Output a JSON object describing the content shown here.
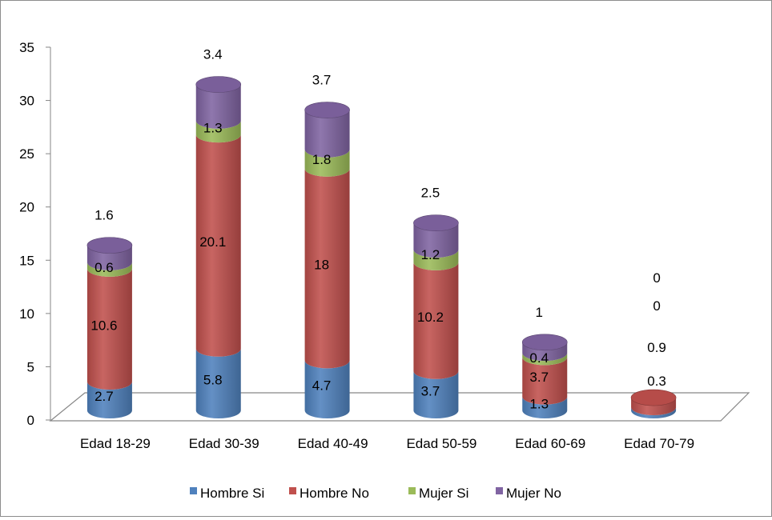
{
  "chart_data": {
    "type": "bar",
    "subtype": "stacked-3d-cylinder",
    "categories": [
      "Edad 18-29",
      "Edad 30-39",
      "Edad 40-49",
      "Edad 50-59",
      "Edad 60-69",
      "Edad 70-79"
    ],
    "series": [
      {
        "name": "Hombre Si",
        "color": "#4F81BD",
        "values": [
          2.7,
          5.8,
          4.7,
          3.7,
          1.3,
          0.3
        ]
      },
      {
        "name": "Hombre No",
        "color": "#C0504D",
        "values": [
          10.6,
          20.1,
          18,
          10.2,
          3.7,
          0.9
        ]
      },
      {
        "name": "Mujer Si",
        "color": "#9BBB59",
        "values": [
          0.6,
          1.3,
          1.8,
          1.2,
          0.4,
          0
        ]
      },
      {
        "name": "Mujer No",
        "color": "#8064A2",
        "values": [
          1.6,
          3.4,
          3.7,
          2.5,
          1,
          0
        ]
      }
    ],
    "ylim": [
      0,
      35
    ],
    "yticks": [
      "0",
      "5",
      "10",
      "15",
      "20",
      "25",
      "30",
      "35"
    ],
    "grid": false,
    "legend": "bottom"
  }
}
